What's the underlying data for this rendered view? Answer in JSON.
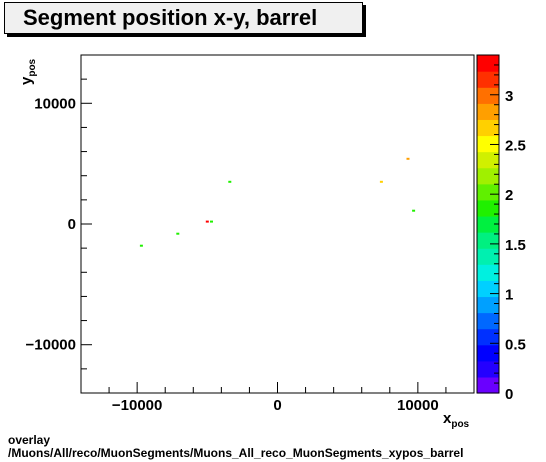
{
  "title": "Segment position x-y, barrel",
  "footer": {
    "line1": "overlay",
    "line2": "/Muons/All/reco/MuonSegments/Muons_All_reco_MuonSegments_xypos_barrel"
  },
  "colors": {
    "palette": [
      "#6a00ff",
      "#2400ff",
      "#0000ff",
      "#0030ff",
      "#0068ff",
      "#00a0ff",
      "#00d0ff",
      "#00f0e0",
      "#00f0b0",
      "#00f080",
      "#00f040",
      "#20f000",
      "#60f000",
      "#a0f000",
      "#d0f000",
      "#ffff00",
      "#ffd000",
      "#ff9f00",
      "#ff7000",
      "#ff3000",
      "#ff0000"
    ]
  },
  "chart_data": {
    "type": "heatmap",
    "title": "Segment position x-y, barrel",
    "xlabel": "x",
    "xlabel_sub": "pos",
    "ylabel": "y",
    "ylabel_sub": "pos",
    "xlim": [
      -14000,
      14000
    ],
    "ylim": [
      -14000,
      14000
    ],
    "xticks": [
      -10000,
      0,
      10000
    ],
    "xtick_labels": [
      "−10000",
      "0",
      "10000"
    ],
    "yticks": [
      -10000,
      0,
      10000
    ],
    "ytick_labels": [
      "−10000",
      "0",
      "10000"
    ],
    "zlim": [
      0,
      3.4
    ],
    "zticks": [
      0,
      0.5,
      1,
      1.5,
      2,
      2.5,
      3
    ],
    "ztick_labels": [
      "0",
      "0.5",
      "1",
      "1.5",
      "2",
      "2.5",
      "3"
    ],
    "points": [
      {
        "x": -9700,
        "y": -1800,
        "z": 1.8
      },
      {
        "x": -7100,
        "y": -800,
        "z": 1.9
      },
      {
        "x": -5000,
        "y": 200,
        "z": 3.4
      },
      {
        "x": -4700,
        "y": 200,
        "z": 1.8
      },
      {
        "x": -3400,
        "y": 3500,
        "z": 1.9
      },
      {
        "x": 7400,
        "y": 3500,
        "z": 2.6
      },
      {
        "x": 9300,
        "y": 5400,
        "z": 2.8
      },
      {
        "x": 9700,
        "y": 1100,
        "z": 1.9
      }
    ]
  }
}
